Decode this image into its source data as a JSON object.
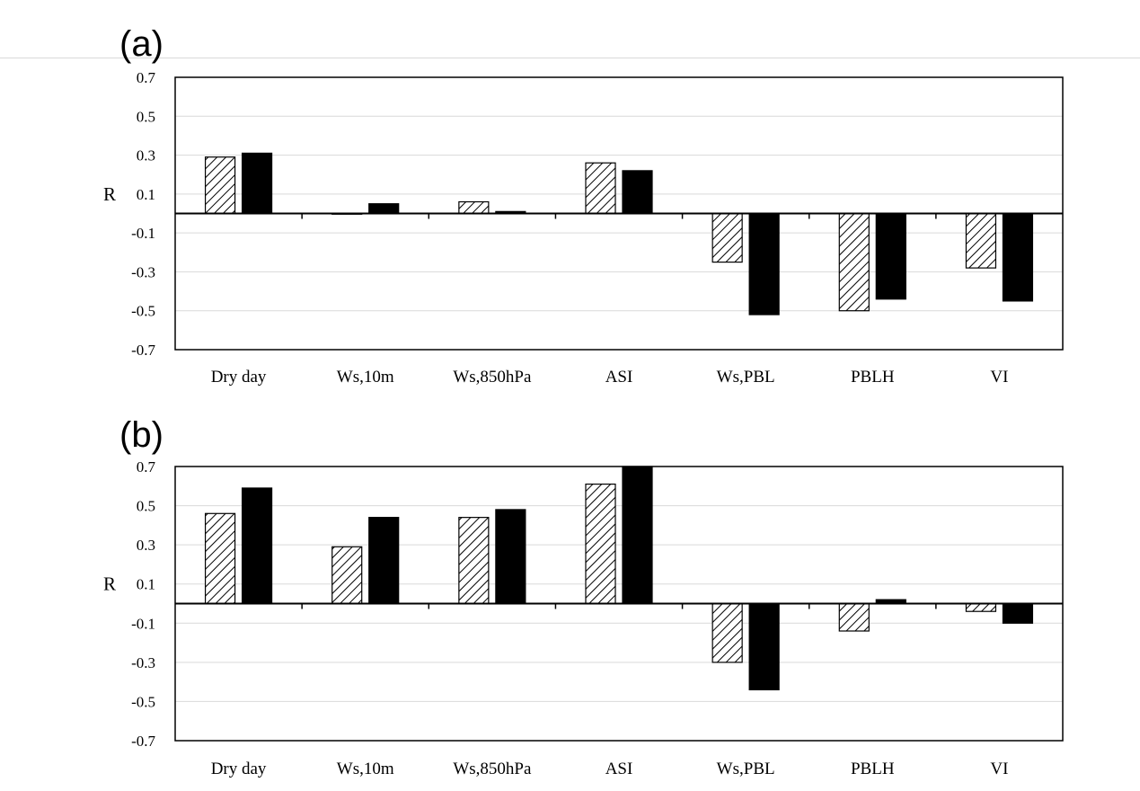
{
  "chart_data": [
    {
      "type": "bar",
      "panel_label": "(a)",
      "ylabel": "R",
      "ylim": [
        -0.7,
        0.7
      ],
      "yticks": [
        "0.7",
        "0.5",
        "0.3",
        "0.1",
        "-0.1",
        "-0.3",
        "-0.5",
        "-0.7"
      ],
      "grid": true,
      "categories": [
        "Dry day",
        "Ws,10m",
        "Ws,850hPa",
        "ASI",
        "Ws,PBL",
        "PBLH",
        "VI"
      ],
      "series": [
        {
          "pattern": "hatched",
          "values": [
            0.29,
            0.0,
            0.06,
            0.26,
            -0.25,
            -0.5,
            -0.28
          ]
        },
        {
          "pattern": "solid-black",
          "values": [
            0.31,
            0.05,
            0.01,
            0.22,
            -0.52,
            -0.44,
            -0.45
          ]
        }
      ]
    },
    {
      "type": "bar",
      "panel_label": "(b)",
      "ylabel": "R",
      "ylim": [
        -0.7,
        0.7
      ],
      "yticks": [
        "0.7",
        "0.5",
        "0.3",
        "0.1",
        "-0.1",
        "-0.3",
        "-0.5",
        "-0.7"
      ],
      "grid": true,
      "categories": [
        "Dry day",
        "Ws,10m",
        "Ws,850hPa",
        "ASI",
        "Ws,PBL",
        "PBLH",
        "VI"
      ],
      "series": [
        {
          "pattern": "hatched",
          "values": [
            0.46,
            0.29,
            0.44,
            0.61,
            -0.3,
            -0.14,
            -0.04
          ]
        },
        {
          "pattern": "solid-black",
          "values": [
            0.59,
            0.44,
            0.48,
            0.7,
            -0.44,
            0.02,
            -0.1
          ]
        }
      ]
    }
  ]
}
